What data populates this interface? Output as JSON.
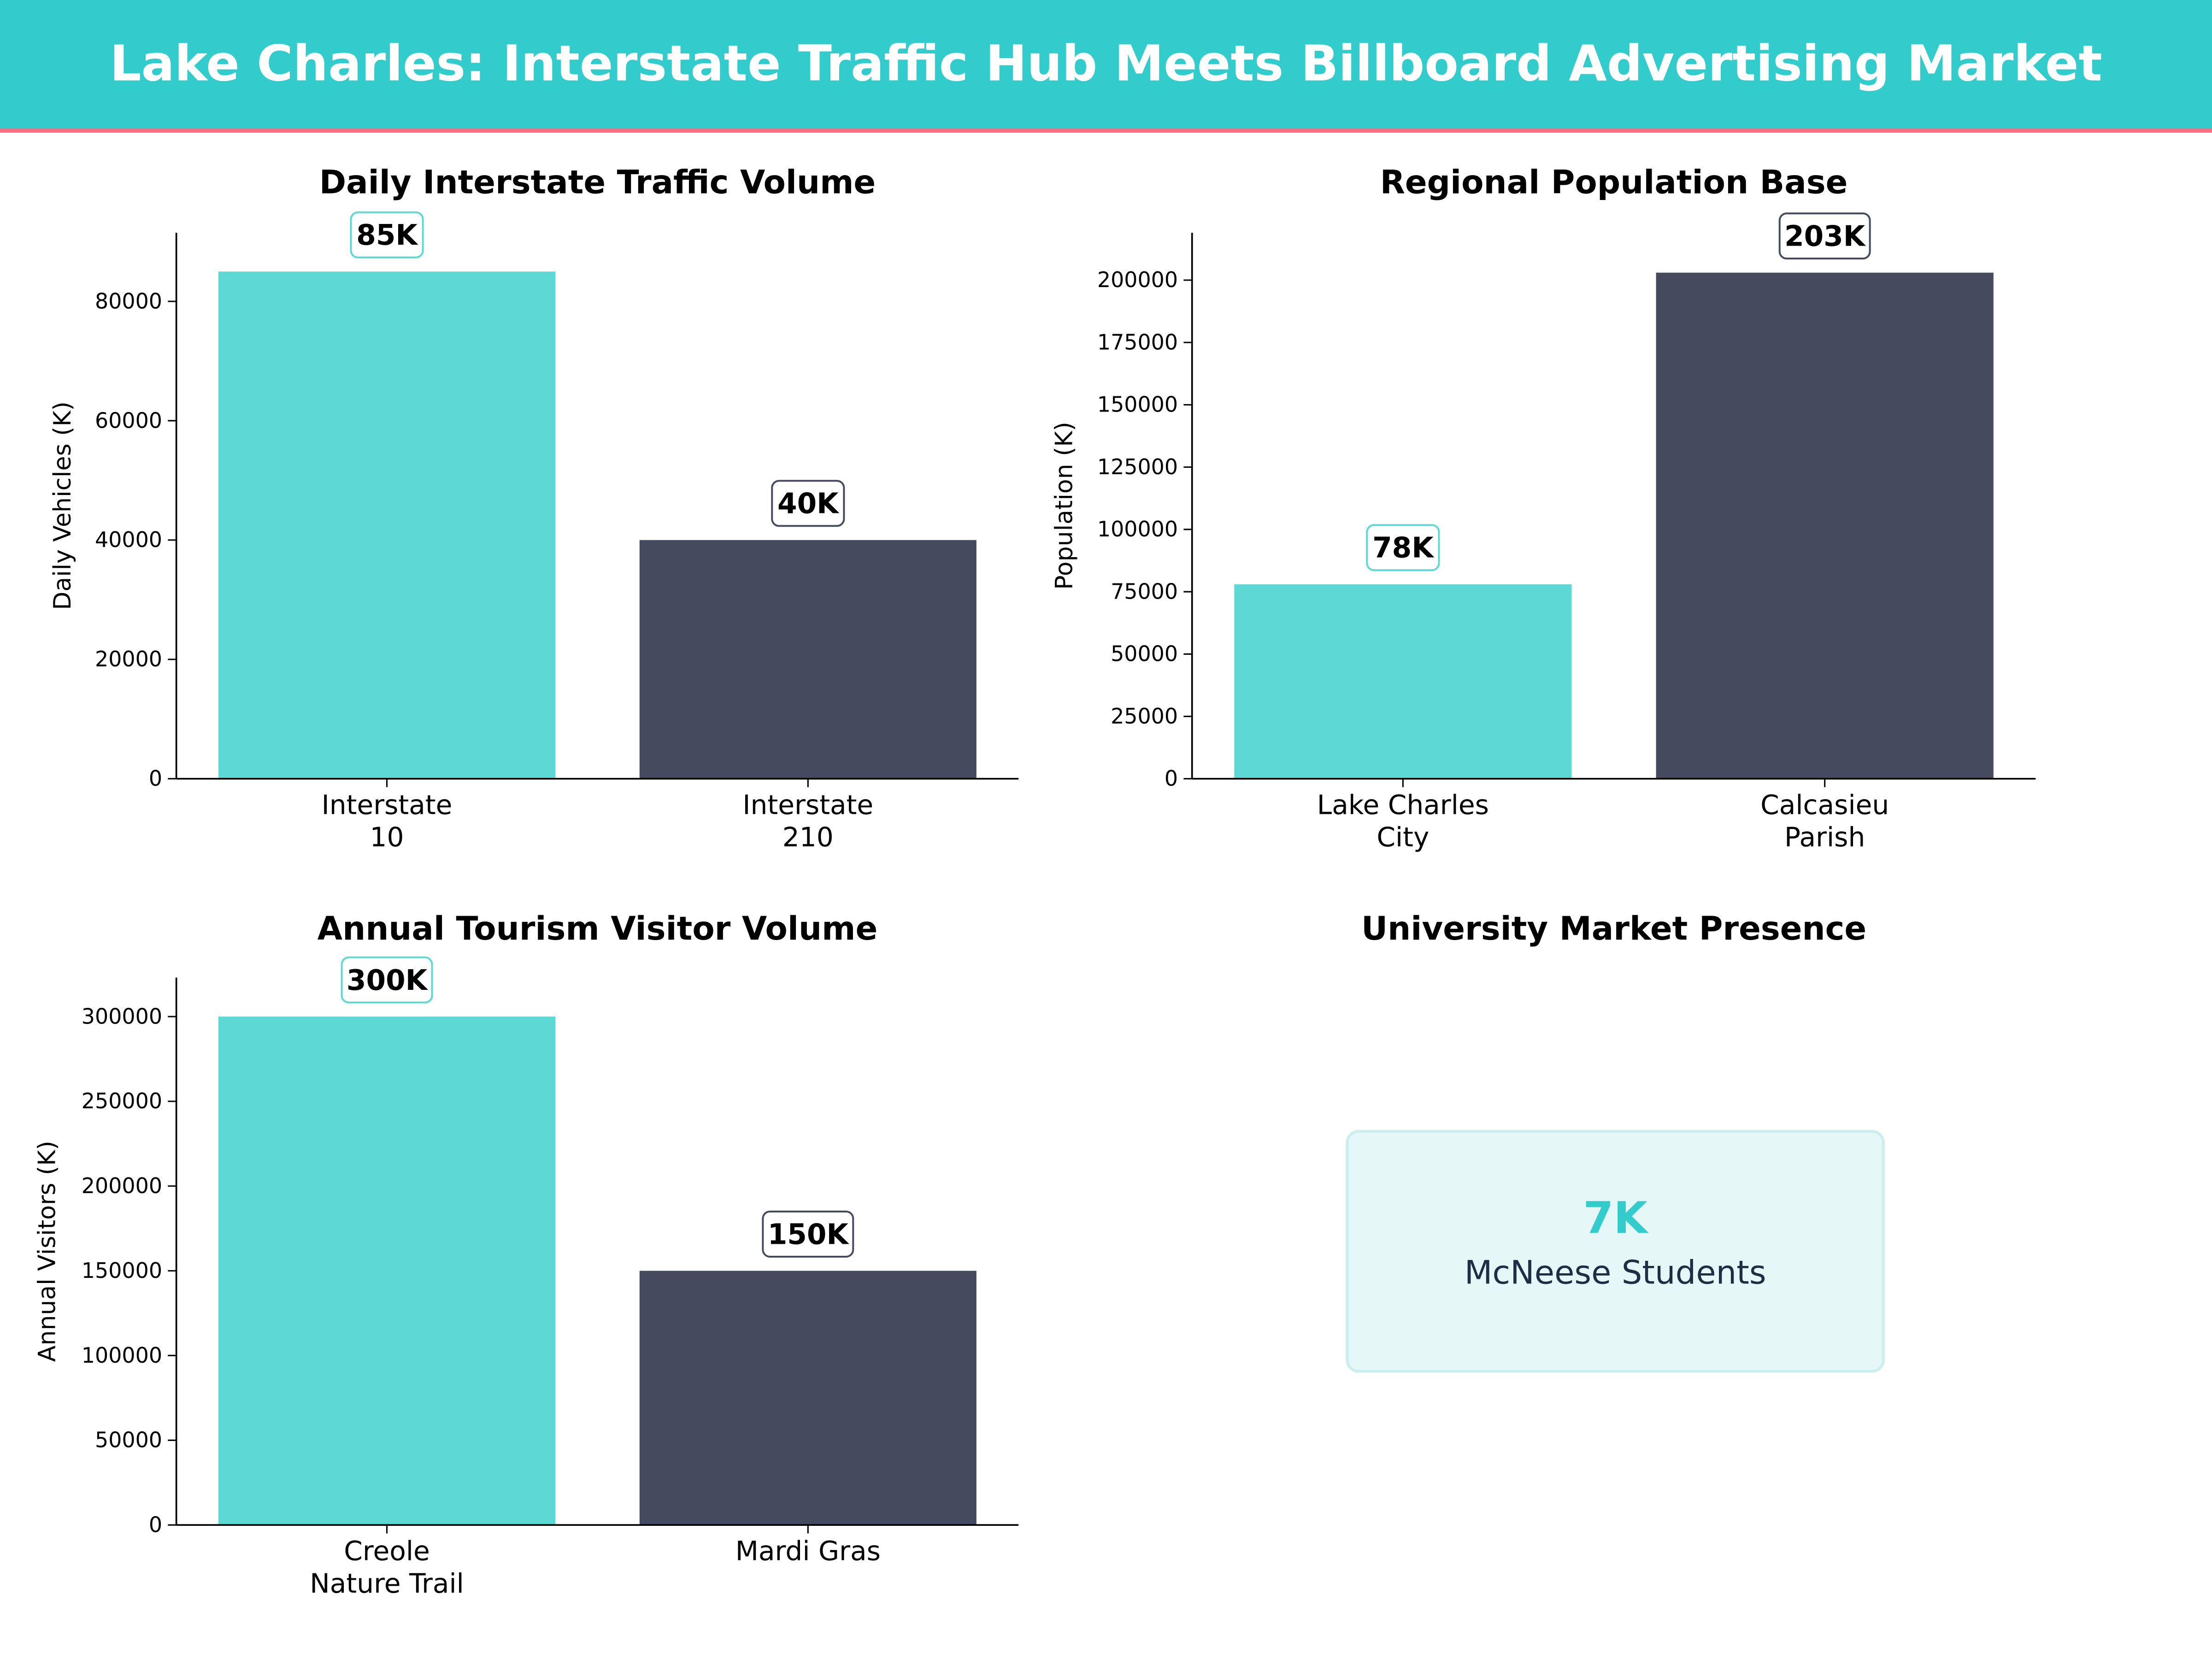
{
  "header": {
    "title": "Lake Charles: Interstate Traffic Hub Meets Billboard Advertising Market"
  },
  "colors": {
    "header_bg": "#33cccc",
    "header_rule": "#ff6b81",
    "accent": "#5dd8d5",
    "dark": "#464a5f",
    "kpi_number": "#33cccc",
    "kpi_text": "#1f2e45",
    "kpi_bg": "#e5f7f7"
  },
  "chart_data": [
    {
      "type": "bar",
      "title": "Daily Interstate Traffic Volume",
      "ylabel": "Daily Vehicles (K)",
      "categories": [
        [
          "Interstate",
          "10"
        ],
        [
          "Interstate",
          "210"
        ]
      ],
      "values": [
        85000,
        40000
      ],
      "labels": [
        "85K",
        "40K"
      ],
      "ylim": [
        0,
        91500
      ],
      "yticks": [
        0,
        20000,
        40000,
        60000,
        80000
      ],
      "colors": [
        "#5dd8d5",
        "#464a5f"
      ]
    },
    {
      "type": "bar",
      "title": "Regional Population Base",
      "ylabel": "Population (K)",
      "categories": [
        [
          "Lake Charles",
          "City"
        ],
        [
          "Calcasieu",
          "Parish"
        ]
      ],
      "values": [
        78000,
        203000
      ],
      "labels": [
        "78K",
        "203K"
      ],
      "ylim": [
        0,
        219000
      ],
      "yticks": [
        0,
        25000,
        50000,
        75000,
        100000,
        125000,
        150000,
        175000,
        200000
      ],
      "colors": [
        "#5dd8d5",
        "#464a5f"
      ]
    },
    {
      "type": "bar",
      "title": "Annual Tourism Visitor Volume",
      "ylabel": "Annual Visitors (K)",
      "categories": [
        [
          "Creole",
          "Nature Trail"
        ],
        [
          "Mardi Gras"
        ]
      ],
      "values": [
        300000,
        150000
      ],
      "labels": [
        "300K",
        "150K"
      ],
      "ylim": [
        0,
        323000
      ],
      "yticks": [
        0,
        50000,
        100000,
        150000,
        200000,
        250000,
        300000
      ],
      "colors": [
        "#5dd8d5",
        "#464a5f"
      ]
    }
  ],
  "kpi": {
    "title": "University Market Presence",
    "value": "7K",
    "label": "McNeese Students"
  }
}
